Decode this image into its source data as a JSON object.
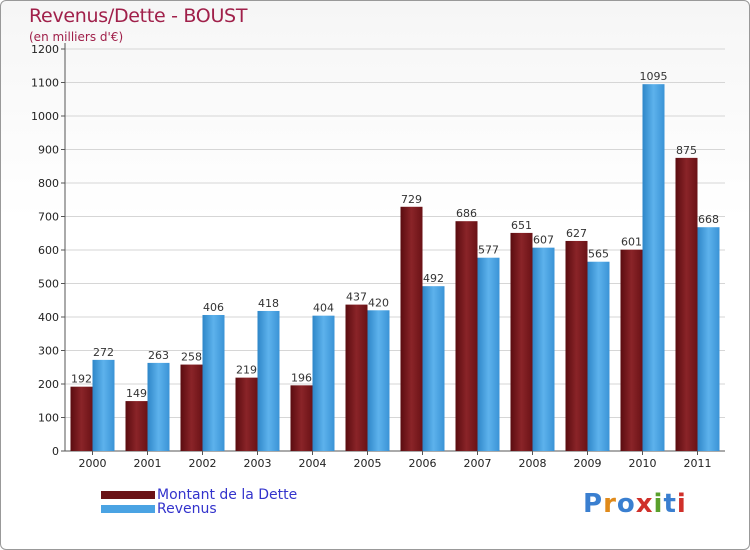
{
  "header": {
    "title": "Revenus/Dette - BOUST",
    "subtitle": "(en milliers d'€)"
  },
  "legend": {
    "debt_label": "Montant de la Dette",
    "revenue_label": "Revenus"
  },
  "logo": {
    "text": "Proxiti"
  },
  "colors": {
    "debt": "#7a1a1e",
    "revenue": "#4aa3e3",
    "title": "#a0204a",
    "legend_text": "#3333cc"
  },
  "chart_data": {
    "type": "bar",
    "title": "Revenus/Dette - BOUST",
    "ylabel": "(en milliers d'€)",
    "xlabel": "",
    "ylim": [
      0,
      1200
    ],
    "yticks": [
      0,
      100,
      200,
      300,
      400,
      500,
      600,
      700,
      800,
      900,
      1000,
      1100,
      1200
    ],
    "categories": [
      "2000",
      "2001",
      "2002",
      "2003",
      "2004",
      "2005",
      "2006",
      "2007",
      "2008",
      "2009",
      "2010",
      "2011"
    ],
    "series": [
      {
        "name": "Montant de la Dette",
        "values": [
          192,
          149,
          258,
          219,
          196,
          437,
          729,
          686,
          651,
          627,
          601,
          875
        ]
      },
      {
        "name": "Revenus",
        "values": [
          272,
          263,
          406,
          418,
          404,
          420,
          492,
          577,
          607,
          565,
          1095,
          668
        ]
      }
    ]
  }
}
